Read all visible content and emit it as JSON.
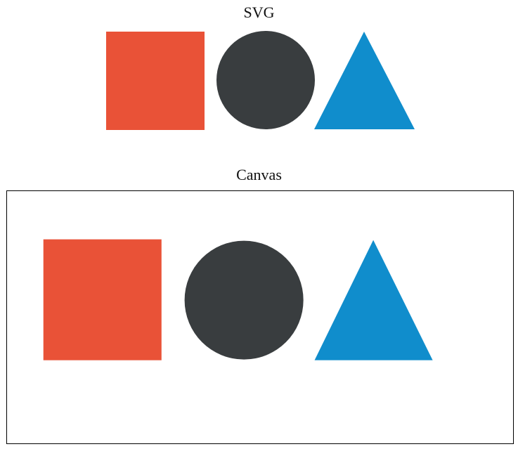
{
  "sections": {
    "svg": {
      "heading": "SVG"
    },
    "canvas": {
      "heading": "Canvas"
    }
  },
  "colors": {
    "square": "#E95237",
    "circle": "#393D3F",
    "triangle": "#108DCC",
    "canvas_border": "#000000",
    "background": "#FFFFFF"
  },
  "shapes": [
    {
      "name": "square",
      "kind": "square"
    },
    {
      "name": "circle",
      "kind": "circle"
    },
    {
      "name": "triangle",
      "kind": "triangle"
    }
  ]
}
